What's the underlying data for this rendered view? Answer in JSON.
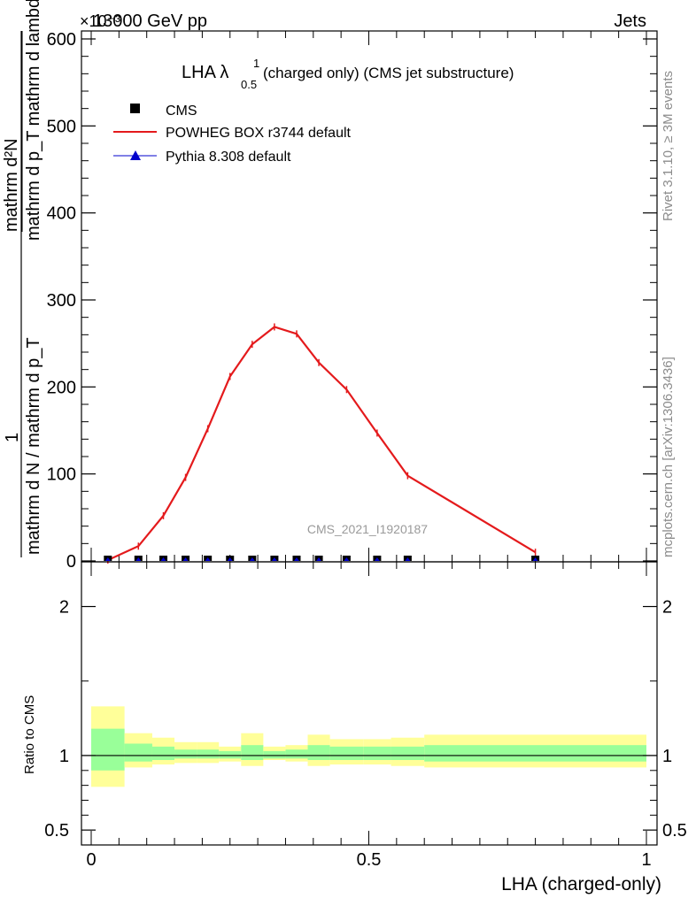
{
  "header": {
    "energy_label": "13000 GeV pp",
    "process_label": "Jets",
    "exponent_label": "×10⁻³"
  },
  "side_labels": {
    "rivet": "Rivet 3.1.10, ≥ 3M events",
    "mcplots": "mcplots.cern.ch [arXiv:1306.3436]"
  },
  "watermark": "CMS_2021_I1920187",
  "chart_data": [
    {
      "type": "line",
      "title_main": "LHA λ",
      "title_sup": "1",
      "title_sub": "0.5",
      "title_rest": " (charged only) (CMS jet substructure)",
      "xlabel": "LHA (charged-only)",
      "ylabel_numerator": "mathrm d²N",
      "ylabel_middle": "mathrm d p_T mathrm d lambda",
      "ylabel_denominator": "mathrm d N / mathrm d p_T",
      "ylabel_one": "1",
      "xlim": [
        0,
        1
      ],
      "ylim": [
        0,
        600
      ],
      "y_scale_note": "×10⁻³",
      "yticks": [
        0,
        100,
        200,
        300,
        400,
        500,
        600
      ],
      "ytick_labels": [
        "0",
        "100",
        "200",
        "300",
        "400",
        "500",
        "600"
      ],
      "legend": [
        {
          "label": "CMS",
          "color": "#000000",
          "marker": "square"
        },
        {
          "label": "POWHEG BOX r3744 default",
          "color": "#e41a1c",
          "marker": "line"
        },
        {
          "label": "Pythia 8.308 default",
          "color": "#0000cc",
          "marker": "triangle"
        }
      ],
      "series": [
        {
          "name": "POWHEG BOX r3744 default",
          "color": "#e41a1c",
          "x": [
            0.03,
            0.085,
            0.13,
            0.17,
            0.21,
            0.25,
            0.29,
            0.33,
            0.37,
            0.41,
            0.46,
            0.515,
            0.57,
            0.8
          ],
          "y": [
            1,
            17,
            52,
            96,
            152,
            212,
            249,
            269,
            261,
            228,
            197,
            147,
            98,
            10
          ]
        },
        {
          "name": "CMS",
          "color": "#000000",
          "x": [
            0.03,
            0.085,
            0.13,
            0.17,
            0.21,
            0.25,
            0.29,
            0.33,
            0.37,
            0.41,
            0.46,
            0.515,
            0.57,
            0.8
          ],
          "y": [
            0,
            0,
            0,
            0,
            0,
            0,
            0,
            0,
            0,
            0,
            0,
            0,
            0,
            0
          ]
        },
        {
          "name": "Pythia 8.308 default",
          "color": "#0000cc",
          "x": [
            0.03,
            0.085,
            0.13,
            0.17,
            0.21,
            0.25,
            0.29,
            0.33,
            0.37,
            0.41,
            0.46,
            0.515,
            0.57,
            0.8
          ],
          "y": [
            0,
            0,
            0,
            0,
            0,
            0,
            0,
            0,
            0,
            0,
            0,
            0,
            0,
            0
          ]
        }
      ]
    },
    {
      "type": "area",
      "ylabel": "Ratio to CMS",
      "xlabel": "LHA (charged-only)",
      "xlim": [
        0,
        1
      ],
      "ylim": [
        0.4,
        2.3
      ],
      "yticks": [
        0.5,
        1,
        2
      ],
      "ytick_labels": [
        "0.5",
        "1",
        "2"
      ],
      "xticks": [
        0,
        0.5,
        1
      ],
      "xtick_labels": [
        "0",
        "0.5",
        "1"
      ],
      "reference_line": 1,
      "bands": [
        {
          "x0": 0.0,
          "x1": 0.06,
          "yellow": [
            0.79,
            1.33
          ],
          "green": [
            0.9,
            1.18
          ]
        },
        {
          "x0": 0.06,
          "x1": 0.11,
          "yellow": [
            0.92,
            1.15
          ],
          "green": [
            0.96,
            1.08
          ]
        },
        {
          "x0": 0.11,
          "x1": 0.15,
          "yellow": [
            0.94,
            1.12
          ],
          "green": [
            0.97,
            1.06
          ]
        },
        {
          "x0": 0.15,
          "x1": 0.19,
          "yellow": [
            0.95,
            1.09
          ],
          "green": [
            0.98,
            1.04
          ]
        },
        {
          "x0": 0.19,
          "x1": 0.23,
          "yellow": [
            0.95,
            1.09
          ],
          "green": [
            0.98,
            1.04
          ]
        },
        {
          "x0": 0.23,
          "x1": 0.27,
          "yellow": [
            0.96,
            1.06
          ],
          "green": [
            0.98,
            1.03
          ]
        },
        {
          "x0": 0.27,
          "x1": 0.31,
          "yellow": [
            0.93,
            1.15
          ],
          "green": [
            0.97,
            1.07
          ]
        },
        {
          "x0": 0.31,
          "x1": 0.35,
          "yellow": [
            0.97,
            1.06
          ],
          "green": [
            0.98,
            1.03
          ]
        },
        {
          "x0": 0.35,
          "x1": 0.39,
          "yellow": [
            0.96,
            1.07
          ],
          "green": [
            0.98,
            1.04
          ]
        },
        {
          "x0": 0.39,
          "x1": 0.43,
          "yellow": [
            0.93,
            1.14
          ],
          "green": [
            0.97,
            1.07
          ]
        },
        {
          "x0": 0.43,
          "x1": 0.49,
          "yellow": [
            0.94,
            1.11
          ],
          "green": [
            0.97,
            1.06
          ]
        },
        {
          "x0": 0.49,
          "x1": 0.54,
          "yellow": [
            0.94,
            1.11
          ],
          "green": [
            0.97,
            1.06
          ]
        },
        {
          "x0": 0.54,
          "x1": 0.6,
          "yellow": [
            0.93,
            1.12
          ],
          "green": [
            0.97,
            1.06
          ]
        },
        {
          "x0": 0.6,
          "x1": 1.0,
          "yellow": [
            0.92,
            1.14
          ],
          "green": [
            0.96,
            1.07
          ]
        }
      ]
    }
  ]
}
